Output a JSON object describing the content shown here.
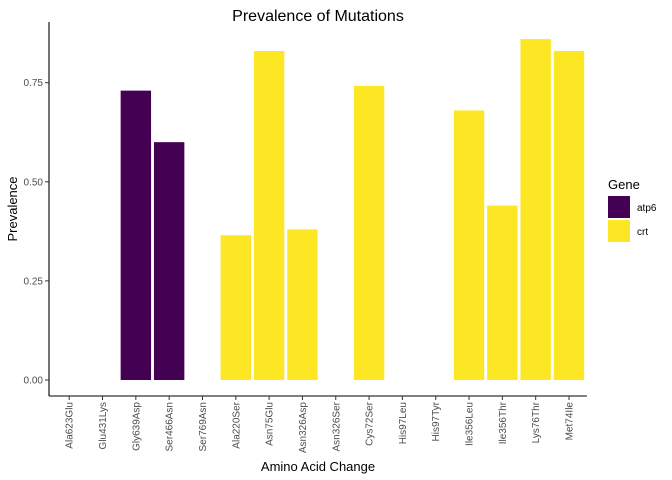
{
  "chart_data": {
    "type": "bar",
    "title": "Prevalence of Mutations",
    "xlabel": "Amino Acid Change",
    "ylabel": "Prevalence",
    "ylim": [
      0,
      0.88
    ],
    "yticks": [
      0,
      0.25,
      0.5,
      0.75
    ],
    "ytick_labels": [
      "0.00",
      "0.25",
      "0.50",
      "0.75"
    ],
    "categories": [
      "Ala623Glu",
      "Glu431Lys",
      "Gly639Asp",
      "Ser466Asn",
      "Ser769Asn",
      "Ala220Ser",
      "Asn75Glu",
      "Asn326Asp",
      "Asn326Ser",
      "Cys72Ser",
      "His97Leu",
      "His97Tyr",
      "Ile356Leu",
      "Ile356Thr",
      "Lys76Thr",
      "Met74Ile"
    ],
    "values": [
      0,
      0,
      0.73,
      0.6,
      0,
      0.365,
      0.83,
      0.38,
      0,
      0.742,
      0,
      0,
      0.68,
      0.44,
      0.86,
      0.83
    ],
    "gene": [
      "atp6",
      "atp6",
      "atp6",
      "atp6",
      "atp6",
      "crt",
      "crt",
      "crt",
      "crt",
      "crt",
      "crt",
      "crt",
      "crt",
      "crt",
      "crt",
      "crt"
    ],
    "legend": {
      "title": "Gene",
      "position": "right",
      "entries": [
        {
          "label": "atp6",
          "color": "#440154"
        },
        {
          "label": "crt",
          "color": "#FDE725"
        }
      ]
    },
    "grid": false
  }
}
